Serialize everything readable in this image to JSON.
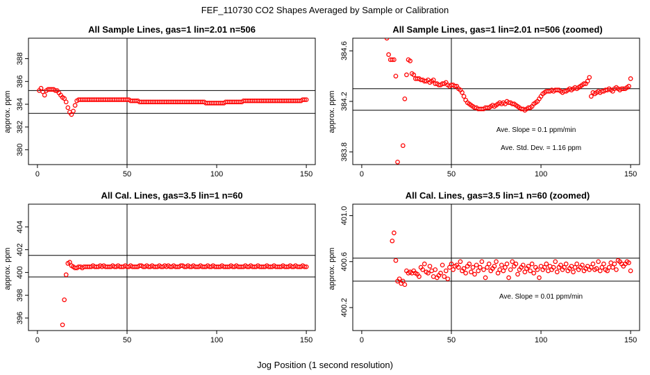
{
  "figure": {
    "title": "FEF_110730  CO2 Shapes Averaged by Sample or Calibration",
    "xlabel": "Jog Position (1 second resolution)"
  },
  "colors": {
    "points": "#ff0000",
    "axes": "#000000"
  },
  "chart_data": [
    {
      "type": "scatter",
      "title": "All Sample Lines, gas=1 lin=2.01 n=506",
      "ylabel": "approx. ppm",
      "xlim": [
        -5,
        155
      ],
      "ylim": [
        378.7,
        389.8
      ],
      "xticks": [
        0,
        50,
        100,
        150
      ],
      "yticks": [
        380,
        382,
        384,
        386,
        388
      ],
      "vline": 50,
      "hlines": [
        383.2,
        385.2
      ],
      "annotations": [],
      "x": [
        1,
        2,
        3,
        4,
        5,
        6,
        7,
        8,
        9,
        10,
        11,
        12,
        13,
        14,
        15,
        16,
        17,
        18,
        19,
        20,
        21,
        22,
        23,
        24,
        25,
        26,
        27,
        28,
        29,
        30,
        31,
        32,
        33,
        34,
        35,
        36,
        37,
        38,
        39,
        40,
        41,
        42,
        43,
        44,
        45,
        46,
        47,
        48,
        49,
        50,
        51,
        52,
        53,
        54,
        55,
        56,
        57,
        58,
        59,
        60,
        61,
        62,
        63,
        64,
        65,
        66,
        67,
        68,
        69,
        70,
        71,
        72,
        73,
        74,
        75,
        76,
        77,
        78,
        79,
        80,
        81,
        82,
        83,
        84,
        85,
        86,
        87,
        88,
        89,
        90,
        91,
        92,
        93,
        94,
        95,
        96,
        97,
        98,
        99,
        100,
        101,
        102,
        103,
        104,
        105,
        106,
        107,
        108,
        109,
        110,
        111,
        112,
        113,
        114,
        115,
        116,
        117,
        118,
        119,
        120,
        121,
        122,
        123,
        124,
        125,
        126,
        127,
        128,
        129,
        130,
        131,
        132,
        133,
        134,
        135,
        136,
        137,
        138,
        139,
        140,
        141,
        142,
        143,
        144,
        145,
        146,
        147,
        148,
        149,
        150
      ],
      "y": [
        385.2,
        385.4,
        385.1,
        384.8,
        385.2,
        385.3,
        385.3,
        385.3,
        385.3,
        385.2,
        385.2,
        385.0,
        384.8,
        384.6,
        384.5,
        384.2,
        383.7,
        383.3,
        383.1,
        383.4,
        383.9,
        384.3,
        384.4,
        384.4,
        384.4,
        384.4,
        384.4,
        384.4,
        384.4,
        384.4,
        384.4,
        384.4,
        384.4,
        384.4,
        384.4,
        384.4,
        384.4,
        384.4,
        384.4,
        384.4,
        384.4,
        384.4,
        384.4,
        384.4,
        384.4,
        384.4,
        384.4,
        384.4,
        384.4,
        384.4,
        384.4,
        384.3,
        384.3,
        384.3,
        384.3,
        384.3,
        384.2,
        384.2,
        384.2,
        384.2,
        384.2,
        384.2,
        384.2,
        384.2,
        384.2,
        384.2,
        384.2,
        384.2,
        384.2,
        384.2,
        384.2,
        384.2,
        384.2,
        384.2,
        384.2,
        384.2,
        384.2,
        384.2,
        384.2,
        384.2,
        384.2,
        384.2,
        384.2,
        384.2,
        384.2,
        384.2,
        384.2,
        384.2,
        384.2,
        384.2,
        384.2,
        384.2,
        384.2,
        384.1,
        384.1,
        384.1,
        384.1,
        384.1,
        384.1,
        384.1,
        384.1,
        384.1,
        384.1,
        384.1,
        384.2,
        384.2,
        384.2,
        384.2,
        384.2,
        384.2,
        384.2,
        384.2,
        384.2,
        384.2,
        384.3,
        384.3,
        384.3,
        384.3,
        384.3,
        384.3,
        384.3,
        384.3,
        384.3,
        384.3,
        384.3,
        384.3,
        384.3,
        384.3,
        384.3,
        384.3,
        384.3,
        384.3,
        384.3,
        384.3,
        384.3,
        384.3,
        384.3,
        384.3,
        384.3,
        384.3,
        384.3,
        384.3,
        384.3,
        384.3,
        384.3,
        384.3,
        384.3,
        384.4,
        384.4,
        384.4
      ]
    },
    {
      "type": "scatter",
      "title": "All Sample Lines, gas=1 lin=2.01 n=506 (zoomed)",
      "ylabel": "approx. ppm",
      "xlim": [
        -5,
        155
      ],
      "ylim": [
        383.7,
        384.7
      ],
      "xticks": [
        0,
        50,
        100,
        150
      ],
      "yticks": [
        383.8,
        384.2,
        384.6
      ],
      "ytick_labels": [
        "383.8",
        "384.2",
        "384.6"
      ],
      "vline": 50,
      "hlines": [
        384.3,
        384.13
      ],
      "annotations": [
        "Ave. Slope =  0.1  ppm/min",
        "Ave. Std. Dev. =  1.16  ppm"
      ],
      "x": [
        14,
        15,
        16,
        17,
        18,
        19,
        20,
        23,
        24,
        25,
        26,
        27,
        28,
        29,
        30,
        31,
        32,
        33,
        34,
        35,
        36,
        37,
        38,
        39,
        40,
        41,
        42,
        43,
        44,
        45,
        46,
        47,
        48,
        49,
        50,
        51,
        52,
        53,
        54,
        55,
        56,
        57,
        58,
        59,
        60,
        61,
        62,
        63,
        64,
        65,
        66,
        67,
        68,
        69,
        70,
        71,
        72,
        73,
        74,
        75,
        76,
        77,
        78,
        79,
        80,
        81,
        82,
        83,
        84,
        85,
        86,
        87,
        88,
        89,
        90,
        91,
        92,
        93,
        94,
        95,
        96,
        97,
        98,
        99,
        100,
        101,
        102,
        103,
        104,
        105,
        106,
        107,
        108,
        109,
        110,
        111,
        112,
        113,
        114,
        115,
        116,
        117,
        118,
        119,
        120,
        121,
        122,
        123,
        124,
        125,
        126,
        127,
        128,
        129,
        130,
        131,
        132,
        133,
        134,
        135,
        136,
        137,
        138,
        139,
        140,
        141,
        142,
        143,
        144,
        145,
        146,
        147,
        148,
        149,
        150
      ],
      "y": [
        384.7,
        384.57,
        384.53,
        384.53,
        384.53,
        384.4,
        383.72,
        383.85,
        384.22,
        384.41,
        384.53,
        384.52,
        384.42,
        384.41,
        384.38,
        384.38,
        384.38,
        384.37,
        384.37,
        384.36,
        384.36,
        384.37,
        384.35,
        384.36,
        384.37,
        384.34,
        384.34,
        384.33,
        384.33,
        384.34,
        384.34,
        384.35,
        384.33,
        384.32,
        384.33,
        384.33,
        384.32,
        384.32,
        384.3,
        384.29,
        384.27,
        384.24,
        384.21,
        384.19,
        384.18,
        384.17,
        384.16,
        384.15,
        384.15,
        384.14,
        384.14,
        384.14,
        384.14,
        384.15,
        384.15,
        384.15,
        384.16,
        384.17,
        384.16,
        384.17,
        384.18,
        384.19,
        384.18,
        384.19,
        384.18,
        384.2,
        384.19,
        384.19,
        384.18,
        384.18,
        384.17,
        384.16,
        384.15,
        384.14,
        384.14,
        384.13,
        384.14,
        384.15,
        384.15,
        384.16,
        384.18,
        384.19,
        384.2,
        384.22,
        384.24,
        384.26,
        384.27,
        384.28,
        384.28,
        384.28,
        384.29,
        384.28,
        384.29,
        384.29,
        384.29,
        384.28,
        384.27,
        384.28,
        384.28,
        384.29,
        384.3,
        384.29,
        384.3,
        384.31,
        384.3,
        384.31,
        384.32,
        384.33,
        384.34,
        384.34,
        384.36,
        384.39,
        384.24,
        384.27,
        384.26,
        384.27,
        384.28,
        384.27,
        384.28,
        384.28,
        384.29,
        384.29,
        384.3,
        384.29,
        384.28,
        384.3,
        384.31,
        384.3,
        384.29,
        384.3,
        384.3,
        384.3,
        384.31,
        384.32,
        384.38
      ]
    },
    {
      "type": "scatter",
      "title": "All Cal. Lines, gas=3.5 lin=1 n=60",
      "ylabel": "approx. ppm",
      "xlim": [
        -5,
        155
      ],
      "ylim": [
        394.9,
        406.0
      ],
      "xticks": [
        0,
        50,
        100,
        150
      ],
      "yticks": [
        396,
        398,
        400,
        402,
        404
      ],
      "vline": 50,
      "hlines": [
        401.5,
        399.6
      ],
      "annotations": [],
      "x": [
        14,
        15,
        16,
        17,
        18,
        19,
        20,
        21,
        22,
        23,
        24,
        25,
        26,
        27,
        28,
        29,
        30,
        31,
        32,
        33,
        34,
        35,
        36,
        37,
        38,
        39,
        40,
        41,
        42,
        43,
        44,
        45,
        46,
        47,
        48,
        49,
        50,
        51,
        52,
        53,
        54,
        55,
        56,
        57,
        58,
        59,
        60,
        61,
        62,
        63,
        64,
        65,
        66,
        67,
        68,
        69,
        70,
        71,
        72,
        73,
        74,
        75,
        76,
        77,
        78,
        79,
        80,
        81,
        82,
        83,
        84,
        85,
        86,
        87,
        88,
        89,
        90,
        91,
        92,
        93,
        94,
        95,
        96,
        97,
        98,
        99,
        100,
        101,
        102,
        103,
        104,
        105,
        106,
        107,
        108,
        109,
        110,
        111,
        112,
        113,
        114,
        115,
        116,
        117,
        118,
        119,
        120,
        121,
        122,
        123,
        124,
        125,
        126,
        127,
        128,
        129,
        130,
        131,
        132,
        133,
        134,
        135,
        136,
        137,
        138,
        139,
        140,
        141,
        142,
        143,
        144,
        145,
        146,
        147,
        148,
        149,
        150
      ],
      "y": [
        395.4,
        397.6,
        399.8,
        400.8,
        400.9,
        400.6,
        400.5,
        400.4,
        400.4,
        400.5,
        400.5,
        400.4,
        400.5,
        400.5,
        400.5,
        400.5,
        400.5,
        400.6,
        400.5,
        400.5,
        400.5,
        400.6,
        400.5,
        400.6,
        400.5,
        400.5,
        400.5,
        400.5,
        400.6,
        400.5,
        400.5,
        400.6,
        400.5,
        400.5,
        400.5,
        400.6,
        400.5,
        400.5,
        400.6,
        400.5,
        400.5,
        400.5,
        400.5,
        400.6,
        400.6,
        400.5,
        400.5,
        400.6,
        400.5,
        400.5,
        400.6,
        400.5,
        400.5,
        400.5,
        400.6,
        400.5,
        400.5,
        400.6,
        400.5,
        400.6,
        400.5,
        400.5,
        400.6,
        400.5,
        400.5,
        400.5,
        400.6,
        400.6,
        400.5,
        400.5,
        400.6,
        400.5,
        400.5,
        400.6,
        400.5,
        400.5,
        400.5,
        400.6,
        400.5,
        400.5,
        400.5,
        400.6,
        400.5,
        400.5,
        400.6,
        400.5,
        400.5,
        400.5,
        400.5,
        400.6,
        400.5,
        400.5,
        400.5,
        400.5,
        400.6,
        400.5,
        400.5,
        400.6,
        400.5,
        400.5,
        400.5,
        400.5,
        400.6,
        400.5,
        400.5,
        400.6,
        400.5,
        400.5,
        400.5,
        400.6,
        400.5,
        400.5,
        400.5,
        400.5,
        400.6,
        400.5,
        400.5,
        400.5,
        400.6,
        400.5,
        400.5,
        400.5,
        400.5,
        400.6,
        400.5,
        400.5,
        400.5,
        400.6,
        400.5,
        400.5,
        400.6,
        400.5,
        400.5,
        400.5,
        400.6,
        400.5,
        400.5
      ]
    },
    {
      "type": "scatter",
      "title": "All Cal. Lines, gas=3.5 lin=1 n=60 (zoomed)",
      "ylabel": "approx. ppm",
      "xlim": [
        -5,
        155
      ],
      "ylim": [
        400.0,
        401.1
      ],
      "xticks": [
        0,
        50,
        100,
        150
      ],
      "yticks": [
        400.2,
        400.6,
        401.0
      ],
      "ytick_labels": [
        "400.2",
        "400.6",
        "401.0"
      ],
      "vline": 50,
      "hlines": [
        400.63,
        400.43
      ],
      "annotations": [
        "Ave. Slope =  0.01  ppm/min"
      ],
      "x": [
        17,
        18,
        19,
        20,
        21,
        22,
        23,
        24,
        25,
        26,
        27,
        28,
        29,
        30,
        31,
        32,
        33,
        34,
        35,
        36,
        37,
        38,
        39,
        40,
        41,
        42,
        43,
        44,
        45,
        46,
        47,
        48,
        49,
        50,
        51,
        52,
        53,
        54,
        55,
        56,
        57,
        58,
        59,
        60,
        61,
        62,
        63,
        64,
        65,
        66,
        67,
        68,
        69,
        70,
        71,
        72,
        73,
        74,
        75,
        76,
        77,
        78,
        79,
        80,
        81,
        82,
        83,
        84,
        85,
        86,
        87,
        88,
        89,
        90,
        91,
        92,
        93,
        94,
        95,
        96,
        97,
        98,
        99,
        100,
        101,
        102,
        103,
        104,
        105,
        106,
        107,
        108,
        109,
        110,
        111,
        112,
        113,
        114,
        115,
        116,
        117,
        118,
        119,
        120,
        121,
        122,
        123,
        124,
        125,
        126,
        127,
        128,
        129,
        130,
        131,
        132,
        133,
        134,
        135,
        136,
        137,
        138,
        139,
        140,
        141,
        142,
        143,
        144,
        145,
        146,
        147,
        148,
        149,
        150
      ],
      "y": [
        400.78,
        400.85,
        400.61,
        400.43,
        400.45,
        400.41,
        400.43,
        400.4,
        400.52,
        400.5,
        400.51,
        400.5,
        400.52,
        400.5,
        400.49,
        400.47,
        400.55,
        400.53,
        400.58,
        400.51,
        400.5,
        400.56,
        400.52,
        400.47,
        400.53,
        400.46,
        400.48,
        400.5,
        400.57,
        400.47,
        400.52,
        400.45,
        400.55,
        400.58,
        400.53,
        400.56,
        400.57,
        400.55,
        400.6,
        400.52,
        400.54,
        400.5,
        400.56,
        400.58,
        400.51,
        400.55,
        400.49,
        400.57,
        400.52,
        400.55,
        400.6,
        400.53,
        400.46,
        400.55,
        400.58,
        400.52,
        400.54,
        400.56,
        400.6,
        400.5,
        400.53,
        400.57,
        400.52,
        400.55,
        400.58,
        400.46,
        400.53,
        400.6,
        400.56,
        400.58,
        400.49,
        400.53,
        400.55,
        400.57,
        400.51,
        400.54,
        400.56,
        400.52,
        400.58,
        400.5,
        400.55,
        400.53,
        400.46,
        400.56,
        400.53,
        400.55,
        400.58,
        400.52,
        400.56,
        400.53,
        400.55,
        400.6,
        400.51,
        400.55,
        400.57,
        400.53,
        400.55,
        400.58,
        400.52,
        400.54,
        400.56,
        400.51,
        400.55,
        400.58,
        400.53,
        400.55,
        400.57,
        400.52,
        400.54,
        400.56,
        400.53,
        400.55,
        400.58,
        400.53,
        400.54,
        400.6,
        400.52,
        400.55,
        400.58,
        400.53,
        400.52,
        400.55,
        400.59,
        400.55,
        400.58,
        400.53,
        400.61,
        400.6,
        400.58,
        400.56,
        400.58,
        400.6,
        400.59,
        400.52
      ]
    }
  ]
}
